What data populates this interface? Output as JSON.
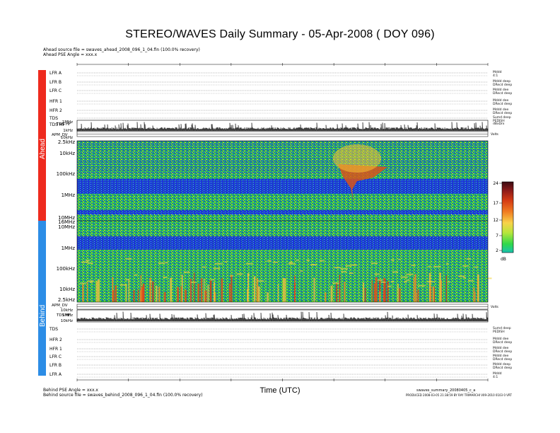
{
  "title": "STEREO/WAVES Daily Summary - 05-Apr-2008 ( DOY 096)",
  "ahead_info": {
    "source_line": "Ahead source file = swaves_ahead_2008_096_1_04.fin (100.0% recovery)",
    "pse_line": "Ahead PSE Angle = xxx.x"
  },
  "behind_info": {
    "pse_line": "Behind PSE Angle = xxx.x",
    "source_line": "Behind source file = swaves_behind_2008_096_1_04.fin (100.0% recovery)"
  },
  "side_bands": {
    "ahead": "Ahead",
    "behind": "Behind"
  },
  "x_axis_label": "Time (UTC)",
  "footer_right": {
    "line1": "swaves_summary_20080405_c_a",
    "line2": "PRODUCED 2008-03-05 21:38:59 BY RAY TRIMARCHI V09-2010 0103 0 VRT"
  },
  "colorbar": {
    "ticks": [
      "24",
      "17",
      "12",
      "7",
      "2"
    ],
    "unit": "dB",
    "colors": [
      "#3a0a12",
      "#8b1a1a",
      "#d43a14",
      "#f07b22",
      "#f8d24a",
      "#b7e63c",
      "#2fd84a",
      "#18c2b0"
    ]
  },
  "ahead_rows": [
    {
      "label": "LFR A",
      "unit1": "Mddd",
      "unit2": "4:1"
    },
    {
      "label": "LFR B",
      "unit1": "Mddd deep",
      "unit2": "DRecd deep"
    },
    {
      "label": "LFR C",
      "unit1": "Mddd dee",
      "unit2": "DRecd deep"
    },
    {
      "label": "HFR 1",
      "unit1": "Mddd dee",
      "unit2": "DRecd deep"
    },
    {
      "label": "HFR 2",
      "unit1": "Mddd dee",
      "unit2": "DRecd deep"
    },
    {
      "label": "TDS",
      "unit1": "Sumd deep",
      "unit2": "PEDISH"
    },
    {
      "label": "TDS HF",
      "unit1": "dBxDrx",
      "unit2": ""
    }
  ],
  "behind_rows": [
    {
      "label": "TDS",
      "unit1": "Sumd deep",
      "unit2": "PEDISH"
    },
    {
      "label": "HFR 2",
      "unit1": "Mddd dee",
      "unit2": "DRecd deep"
    },
    {
      "label": "HFR 1",
      "unit1": "Mddd dee",
      "unit2": "DRecd deep"
    },
    {
      "label": "LFR C",
      "unit1": "Mddd dee",
      "unit2": "DRecd deep"
    },
    {
      "label": "LFR B",
      "unit1": "Mddd deep",
      "unit2": "DRecd deep"
    },
    {
      "label": "LFR A",
      "unit1": "Mddd",
      "unit2": "4:1"
    }
  ],
  "ahead_freq_labels": [
    "1MHz",
    "1kHz",
    "10kHz",
    "2.5kHz",
    "10kHz",
    "100kHz",
    "1MHz",
    "10MHz",
    "1MHz",
    "10MHz"
  ],
  "ahead_mini_labels": [
    "TDS HF",
    "1MHz",
    "1kHz",
    "APM_DV",
    "10kHz"
  ],
  "ahead_spectrum_labels": [
    "2.5kHz",
    "10kHz",
    "100kHz",
    "1MHz",
    "10MHz",
    "16MHz",
    "10MHz"
  ],
  "behind_spectrum_labels": [
    "1MHz",
    "100kHz",
    "10kHz",
    "2.5kHz"
  ],
  "behind_mini_labels": [
    "APM_DV",
    "10kHz",
    "TDS HF",
    "1MHz",
    "10kHz"
  ],
  "volts_label": "Volts"
}
